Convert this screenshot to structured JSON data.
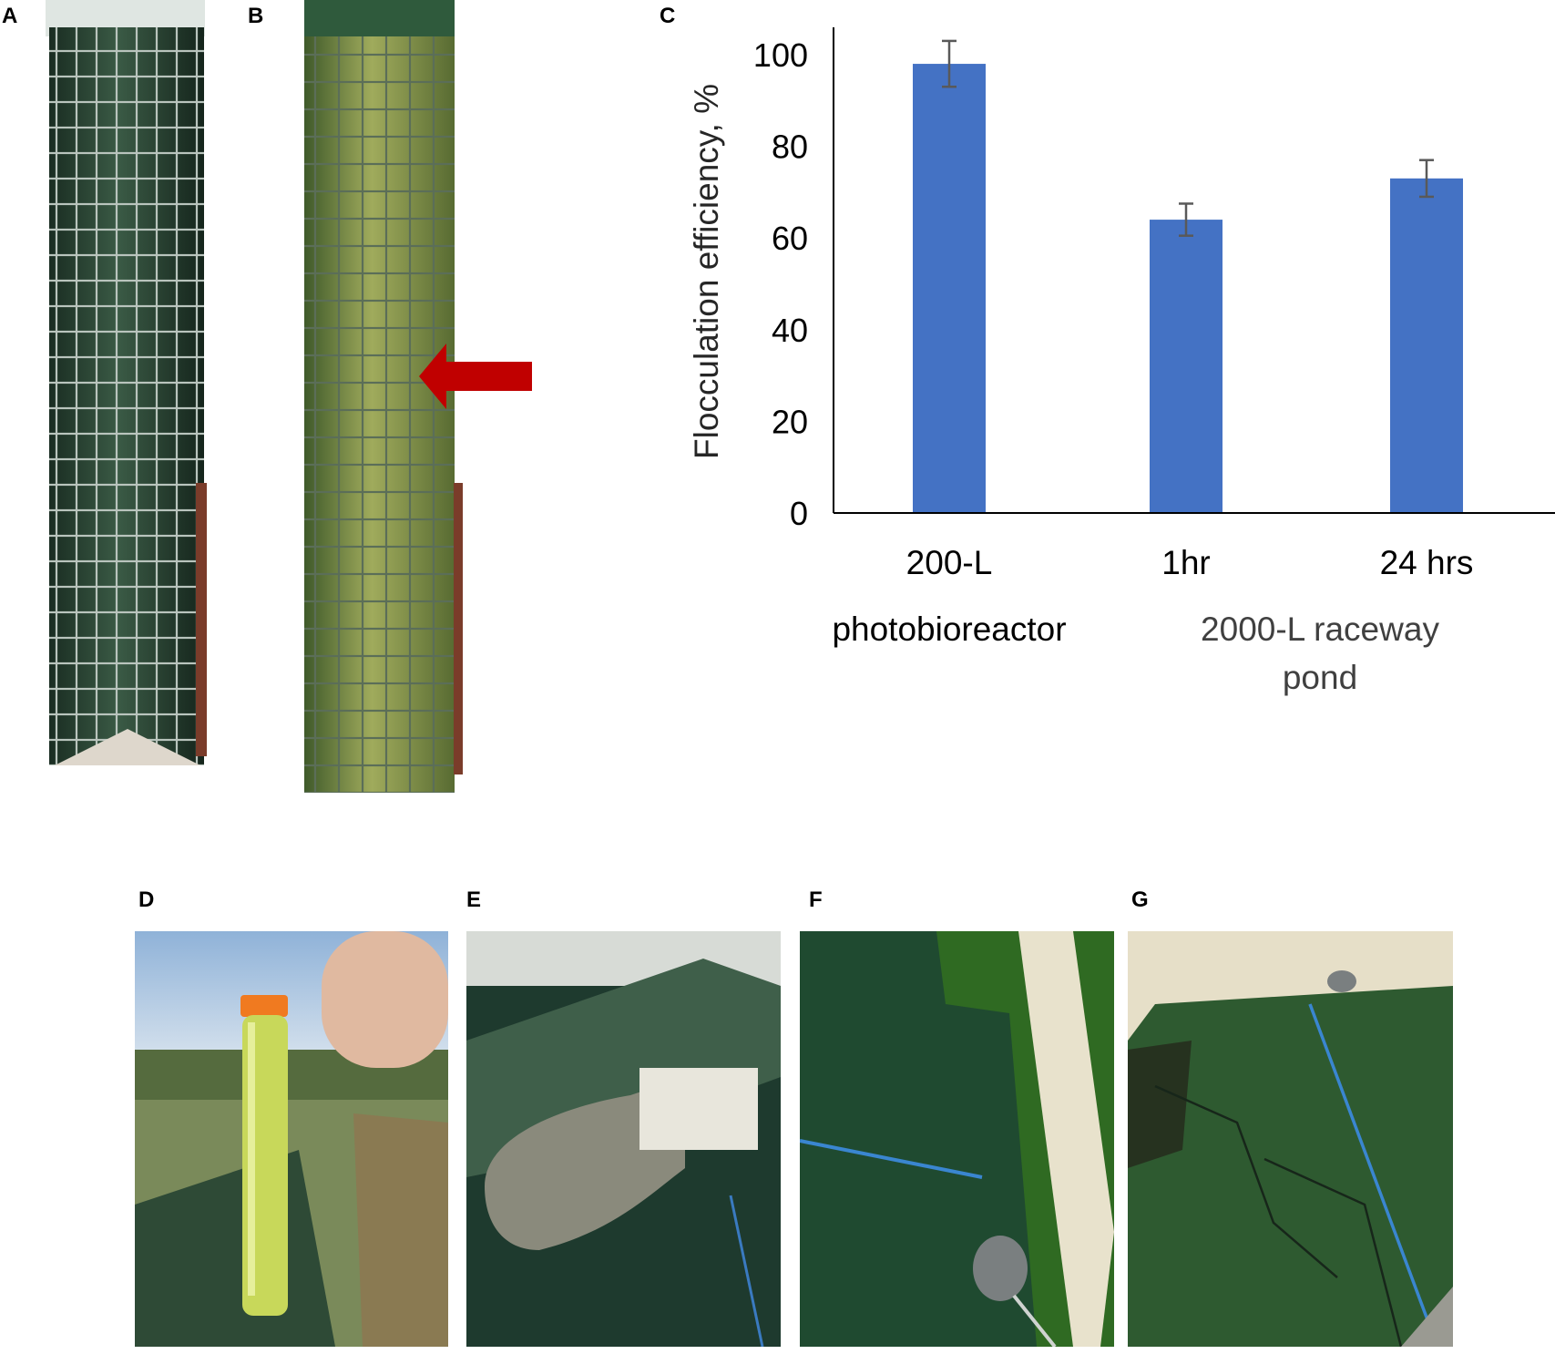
{
  "panels": {
    "a": "A",
    "b": "B",
    "c": "C",
    "d": "D",
    "e": "E",
    "f": "F",
    "g": "G"
  },
  "photos": {
    "a": {
      "subject": "dark green algae culture in mesh-wrapped column photobioreactor"
    },
    "b": {
      "subject": "light green flocculated culture in mesh-wrapped column",
      "arrow_color": "#c00000"
    },
    "d": {
      "subject": "hand holding centrifuge tube with yellow-green culture beside raceway"
    },
    "e": {
      "subject": "raceway pond with paddlewheel and floating flocs"
    },
    "f": {
      "subject": "raceway pond corner with green flocs and probe"
    },
    "g": {
      "subject": "raceway pond surface with green biomass mat"
    }
  },
  "colors": {
    "bar": "#4472c4",
    "error_bar": "#595959",
    "axis": "#000000",
    "arrow": "#c00000"
  },
  "chart_data": {
    "type": "bar",
    "ylabel": "Flocculation efficiency, %",
    "ylim": [
      0,
      100
    ],
    "yticks": [
      "0",
      "20",
      "40",
      "60",
      "80",
      "100"
    ],
    "categories": [
      "200-L",
      "1hr",
      "24 hrs"
    ],
    "group_labels": [
      "photobioreactor",
      "2000-L raceway",
      "pond"
    ],
    "values": [
      98,
      64,
      73
    ],
    "errors": [
      5,
      3.5,
      4
    ],
    "grid": false,
    "legend": "none"
  }
}
